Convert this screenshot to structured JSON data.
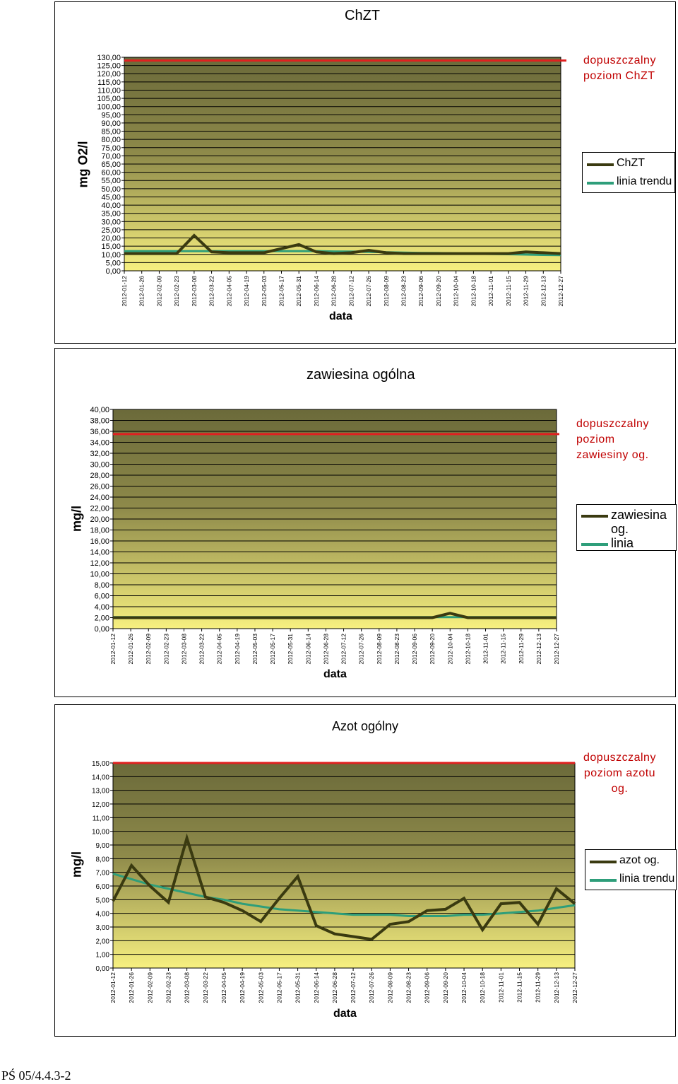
{
  "footer": "PŚ 05/4.4.3-2",
  "colors": {
    "series": "#3a3a10",
    "trend": "#2e9e7a",
    "limit": "#e02020",
    "limit_text": "#c00000",
    "plot_top": "#6b6a3a",
    "plot_bottom": "#f7f080"
  },
  "chart_data": [
    {
      "type": "line",
      "title": "ChZT",
      "ylabel": "mg O2/l",
      "xlabel": "data",
      "ylim": [
        0,
        130
      ],
      "ytick_step": 5,
      "grid": true,
      "legend_position": "right",
      "limit_value": 128,
      "limit_label": [
        "dopuszczalny",
        "poziom ChZT"
      ],
      "x": [
        "2012-01-12",
        "2012-01-26",
        "2012-02-09",
        "2012-02-23",
        "2012-03-08",
        "2012-03-22",
        "2012-04-05",
        "2012-04-19",
        "2012-05-03",
        "2012-05-17",
        "2012-05-31",
        "2012-06-14",
        "2012-06-28",
        "2012-07-12",
        "2012-07-26",
        "2012-08-09",
        "2012-08-23",
        "2012-09-06",
        "2012-09-20",
        "2012-10-04",
        "2012-10-18",
        "2012-11-01",
        "2012-11-15",
        "2012-11-29",
        "2012-12-13",
        "2012-12-27"
      ],
      "series": [
        {
          "name": "ChZT",
          "values": [
            10.5,
            10.5,
            10.5,
            10.5,
            21.5,
            11.5,
            11,
            11,
            11,
            13.5,
            16,
            11.5,
            10.5,
            11,
            12.5,
            11,
            10.5,
            10.5,
            10.5,
            10.5,
            10.5,
            10.5,
            10.5,
            11.5,
            11,
            10.5
          ]
        },
        {
          "name": "linia trendu",
          "values": [
            12,
            12,
            12,
            12,
            12,
            12,
            12,
            12,
            12,
            12,
            12,
            12,
            11.8,
            11.7,
            11.5,
            11.3,
            11.1,
            10.9,
            10.8,
            10.6,
            10.4,
            10.3,
            10.1,
            9.9,
            9.7,
            9.6
          ]
        }
      ]
    },
    {
      "type": "line",
      "title": "zawiesina ogólna",
      "ylabel": "mg/l",
      "xlabel": "data",
      "ylim": [
        0,
        40
      ],
      "ytick_step": 2,
      "grid": true,
      "legend_position": "right",
      "limit_value": 35.5,
      "limit_label": [
        "dopuszczalny",
        "poziom",
        "zawiesiny og."
      ],
      "x": [
        "2012-01-12",
        "2012-01-26",
        "2012-02-09",
        "2012-02-23",
        "2012-03-08",
        "2012-03-22",
        "2012-04-05",
        "2012-04-19",
        "2012-05-03",
        "2012-05-17",
        "2012-05-31",
        "2012-06-14",
        "2012-06-28",
        "2012-07-12",
        "2012-07-26",
        "2012-08-09",
        "2012-08-23",
        "2012-09-06",
        "2012-09-20",
        "2012-10-04",
        "2012-10-18",
        "2012-11-01",
        "2012-11-15",
        "2012-11-29",
        "2012-12-13",
        "2012-12-27"
      ],
      "series": [
        {
          "name": "zawiesina og.",
          "values": [
            2,
            2,
            2,
            2,
            2,
            2,
            2,
            2,
            2,
            2,
            2,
            2,
            2,
            2,
            2,
            2,
            2,
            2,
            2,
            2.8,
            2,
            2,
            2,
            2,
            2,
            2
          ]
        },
        {
          "name": "linia",
          "values": [
            2.1,
            2.1,
            2.1,
            2.1,
            2.1,
            2.1,
            2.1,
            2.1,
            2.1,
            2.1,
            2.1,
            2.1,
            2.1,
            2.1,
            2.1,
            2.1,
            2.1,
            2.1,
            2.1,
            2.1,
            2.1,
            2.1,
            2.1,
            2.1,
            2.1,
            2.1
          ]
        }
      ]
    },
    {
      "type": "line",
      "title": "Azot ogólny",
      "ylabel": "mg/l",
      "xlabel": "data",
      "ylim": [
        0,
        15
      ],
      "ytick_step": 1,
      "grid": true,
      "legend_position": "right",
      "limit_value": 15,
      "limit_label": [
        "dopuszczalny",
        "poziom azotu",
        "og."
      ],
      "x": [
        "2012-01-12",
        "2012-01-26",
        "2012-02-09",
        "2012-02-23",
        "2012-03-08",
        "2012-03-22",
        "2012-04-05",
        "2012-04-19",
        "2012-05-03",
        "2012-05-17",
        "2012-05-31",
        "2012-06-14",
        "2012-06-28",
        "2012-07-12",
        "2012-07-26",
        "2012-08-09",
        "2012-08-23",
        "2012-09-06",
        "2012-09-20",
        "2012-10-04",
        "2012-10-18",
        "2012-11-01",
        "2012-11-15",
        "2012-11-29",
        "2012-12-13",
        "2012-12-27"
      ],
      "series": [
        {
          "name": "azot og.",
          "values": [
            4.9,
            7.5,
            6.0,
            4.8,
            9.5,
            5.2,
            4.8,
            4.2,
            3.4,
            5.1,
            6.7,
            3.1,
            2.5,
            2.3,
            2.1,
            3.2,
            3.4,
            4.2,
            4.3,
            5.1,
            2.8,
            4.7,
            4.8,
            3.2,
            5.8,
            4.7
          ]
        },
        {
          "name": "linia trendu",
          "values": [
            6.9,
            6.5,
            6.1,
            5.8,
            5.5,
            5.2,
            5.0,
            4.7,
            4.5,
            4.3,
            4.2,
            4.1,
            4.0,
            3.9,
            3.9,
            3.9,
            3.8,
            3.8,
            3.8,
            3.9,
            3.9,
            4.0,
            4.1,
            4.2,
            4.4,
            4.6
          ]
        }
      ]
    }
  ]
}
